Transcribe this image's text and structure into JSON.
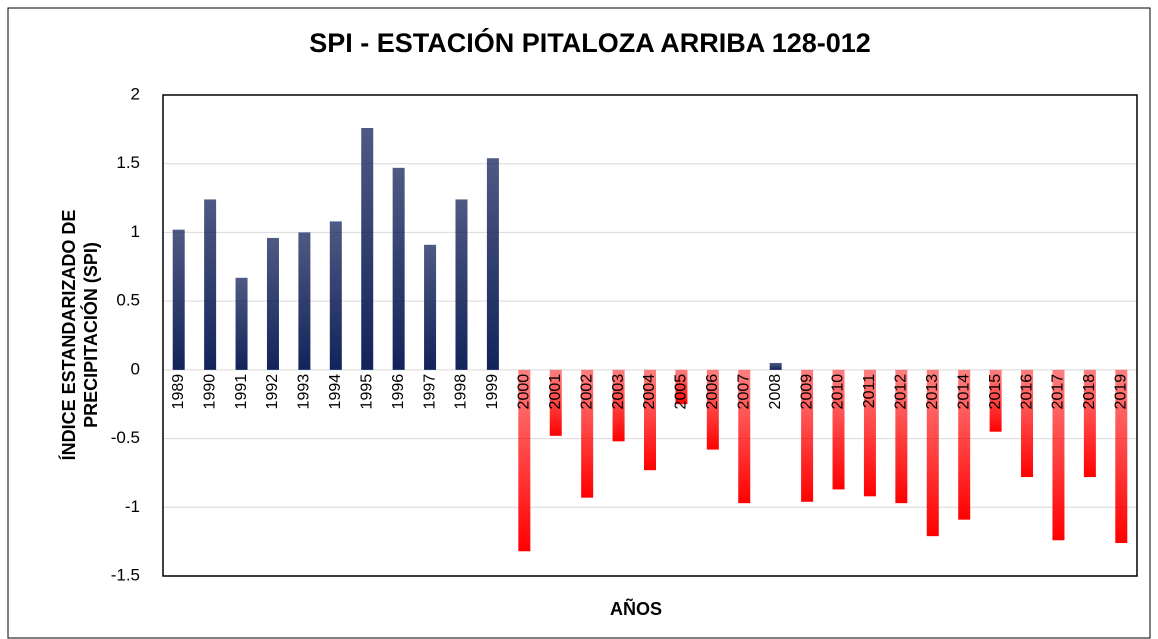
{
  "chart_data": {
    "type": "bar",
    "title": "SPI - ESTACIÓN PITALOZA ARRIBA 128-012",
    "x_label": "AÑOS",
    "y_label": [
      "ÍNDICE ESTANDARIZADO DE",
      "PRECIPITACIÓN (SPI)"
    ],
    "categories": [
      "1989",
      "1990",
      "1991",
      "1992",
      "1993",
      "1994",
      "1995",
      "1996",
      "1997",
      "1998",
      "1999",
      "2000",
      "2001",
      "2002",
      "2003",
      "2004",
      "2005",
      "2006",
      "2007",
      "2008",
      "2009",
      "2010",
      "2011",
      "2012",
      "2013",
      "2014",
      "2015",
      "2016",
      "2017",
      "2018",
      "2019"
    ],
    "values": [
      1.02,
      1.24,
      0.67,
      0.96,
      1.0,
      1.08,
      1.76,
      1.47,
      0.91,
      1.24,
      1.54,
      -1.32,
      -0.48,
      -0.93,
      -0.52,
      -0.73,
      -0.25,
      -0.58,
      -0.97,
      0.05,
      -0.96,
      -0.87,
      -0.92,
      -0.97,
      -1.21,
      -1.09,
      -0.45,
      -0.78,
      -1.24,
      -0.78,
      -1.26
    ],
    "positive_color": "#13235a",
    "negative_color": "#ff0000",
    "ylim": [
      -1.5,
      2
    ],
    "yticks": [
      -1.5,
      -1,
      -0.5,
      0,
      0.5,
      1,
      1.5,
      2
    ],
    "grid": true
  }
}
